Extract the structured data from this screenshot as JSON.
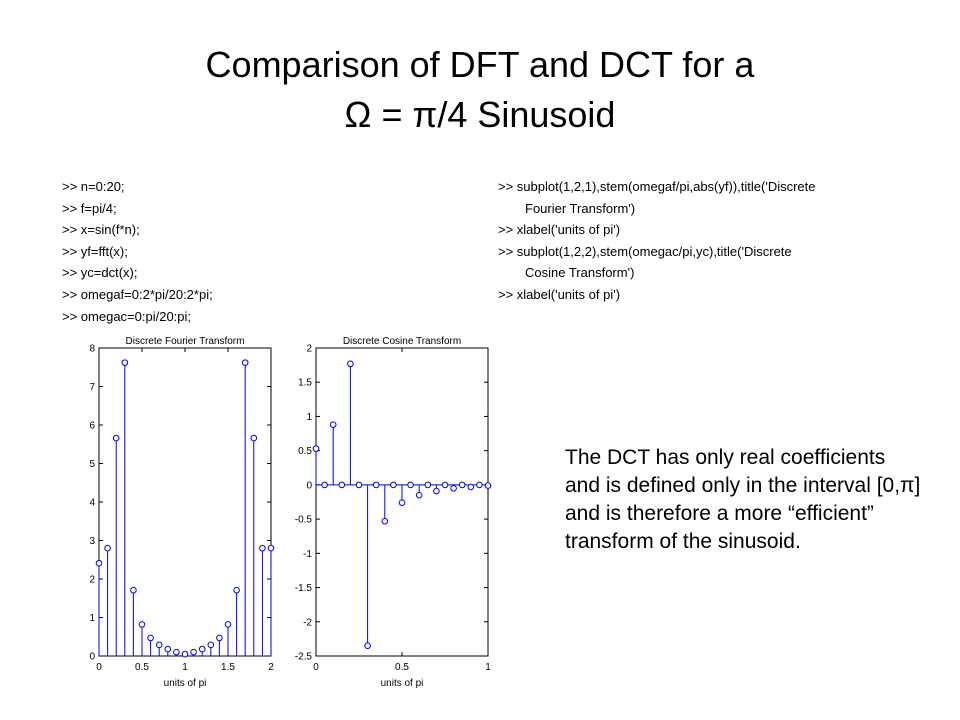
{
  "title": {
    "line1": "Comparison of DFT and DCT for a",
    "line2": "Ω = π/4 Sinusoid"
  },
  "code_left": [
    ">> n=0:20;",
    ">> f=pi/4;",
    ">> x=sin(f*n);",
    ">> yf=fft(x);",
    ">> yc=dct(x);",
    ">> omegaf=0:2*pi/20:2*pi;",
    ">> omegac=0:pi/20:pi;"
  ],
  "code_right": {
    "line1": ">> subplot(1,2,1),stem(omegaf/pi,abs(yf)),title('Discrete",
    "line1_cont": "Fourier Transform')",
    "line2": ">> xlabel('units of pi')",
    "line3": ">> subplot(1,2,2),stem(omegac/pi,yc),title('Discrete",
    "line3_cont": "Cosine Transform')",
    "line4": ">> xlabel('units of pi')"
  },
  "note": "The DCT has only real coefficients and is defined only in the interval [0,π] and is therefore a more “efficient” transform of the sinusoid.",
  "colors": {
    "stem": "#0000ff",
    "axes": "#000000"
  },
  "chart_data": [
    {
      "type": "stem",
      "title": "Discrete Fourier Transform",
      "xlabel": "units of pi",
      "ylabel": "",
      "xlim": [
        0,
        2
      ],
      "ylim": [
        0,
        8
      ],
      "xticks": [
        0,
        0.5,
        1,
        1.5,
        2
      ],
      "xtick_labels": [
        "0",
        "0.5",
        "1",
        "1.5",
        "2"
      ],
      "yticks": [
        0,
        1,
        2,
        3,
        4,
        5,
        6,
        7,
        8
      ],
      "ytick_labels": [
        "0",
        "1",
        "2",
        "3",
        "4",
        "5",
        "6",
        "7",
        "8"
      ],
      "grid": false,
      "x": [
        0,
        0.1,
        0.2,
        0.3,
        0.4,
        0.5,
        0.6,
        0.7,
        0.8,
        0.9,
        1.0,
        1.1,
        1.2,
        1.3,
        1.4,
        1.5,
        1.6,
        1.7,
        1.8,
        1.9,
        2.0
      ],
      "y": [
        2.41,
        2.8,
        5.66,
        7.62,
        1.71,
        0.82,
        0.47,
        0.29,
        0.18,
        0.1,
        0.05,
        0.1,
        0.18,
        0.29,
        0.47,
        0.82,
        1.71,
        7.62,
        5.66,
        2.8,
        2.8
      ]
    },
    {
      "type": "stem",
      "title": "Discrete Cosine Transform",
      "xlabel": "units of pi",
      "ylabel": "",
      "xlim": [
        0,
        1
      ],
      "ylim": [
        -2.5,
        2
      ],
      "xticks": [
        0,
        0.5,
        1
      ],
      "xtick_labels": [
        "0",
        "0.5",
        "1"
      ],
      "yticks": [
        -2.5,
        -2,
        -1.5,
        -1,
        -0.5,
        0,
        0.5,
        1,
        1.5,
        2
      ],
      "ytick_labels": [
        "-2.5",
        "-2",
        "-1.5",
        "-1",
        "-0.5",
        "0",
        "0.5",
        "1",
        "1.5",
        "2"
      ],
      "grid": false,
      "x": [
        0,
        0.05,
        0.1,
        0.15,
        0.2,
        0.25,
        0.3,
        0.35,
        0.4,
        0.45,
        0.5,
        0.55,
        0.6,
        0.65,
        0.7,
        0.75,
        0.8,
        0.85,
        0.9,
        0.95,
        1.0
      ],
      "y": [
        0.53,
        0.0,
        0.88,
        0.0,
        1.77,
        0.0,
        -2.35,
        0.0,
        -0.53,
        0.0,
        -0.26,
        0.0,
        -0.15,
        0.0,
        -0.09,
        0.0,
        -0.05,
        0.0,
        -0.03,
        0.0,
        -0.01
      ]
    }
  ]
}
